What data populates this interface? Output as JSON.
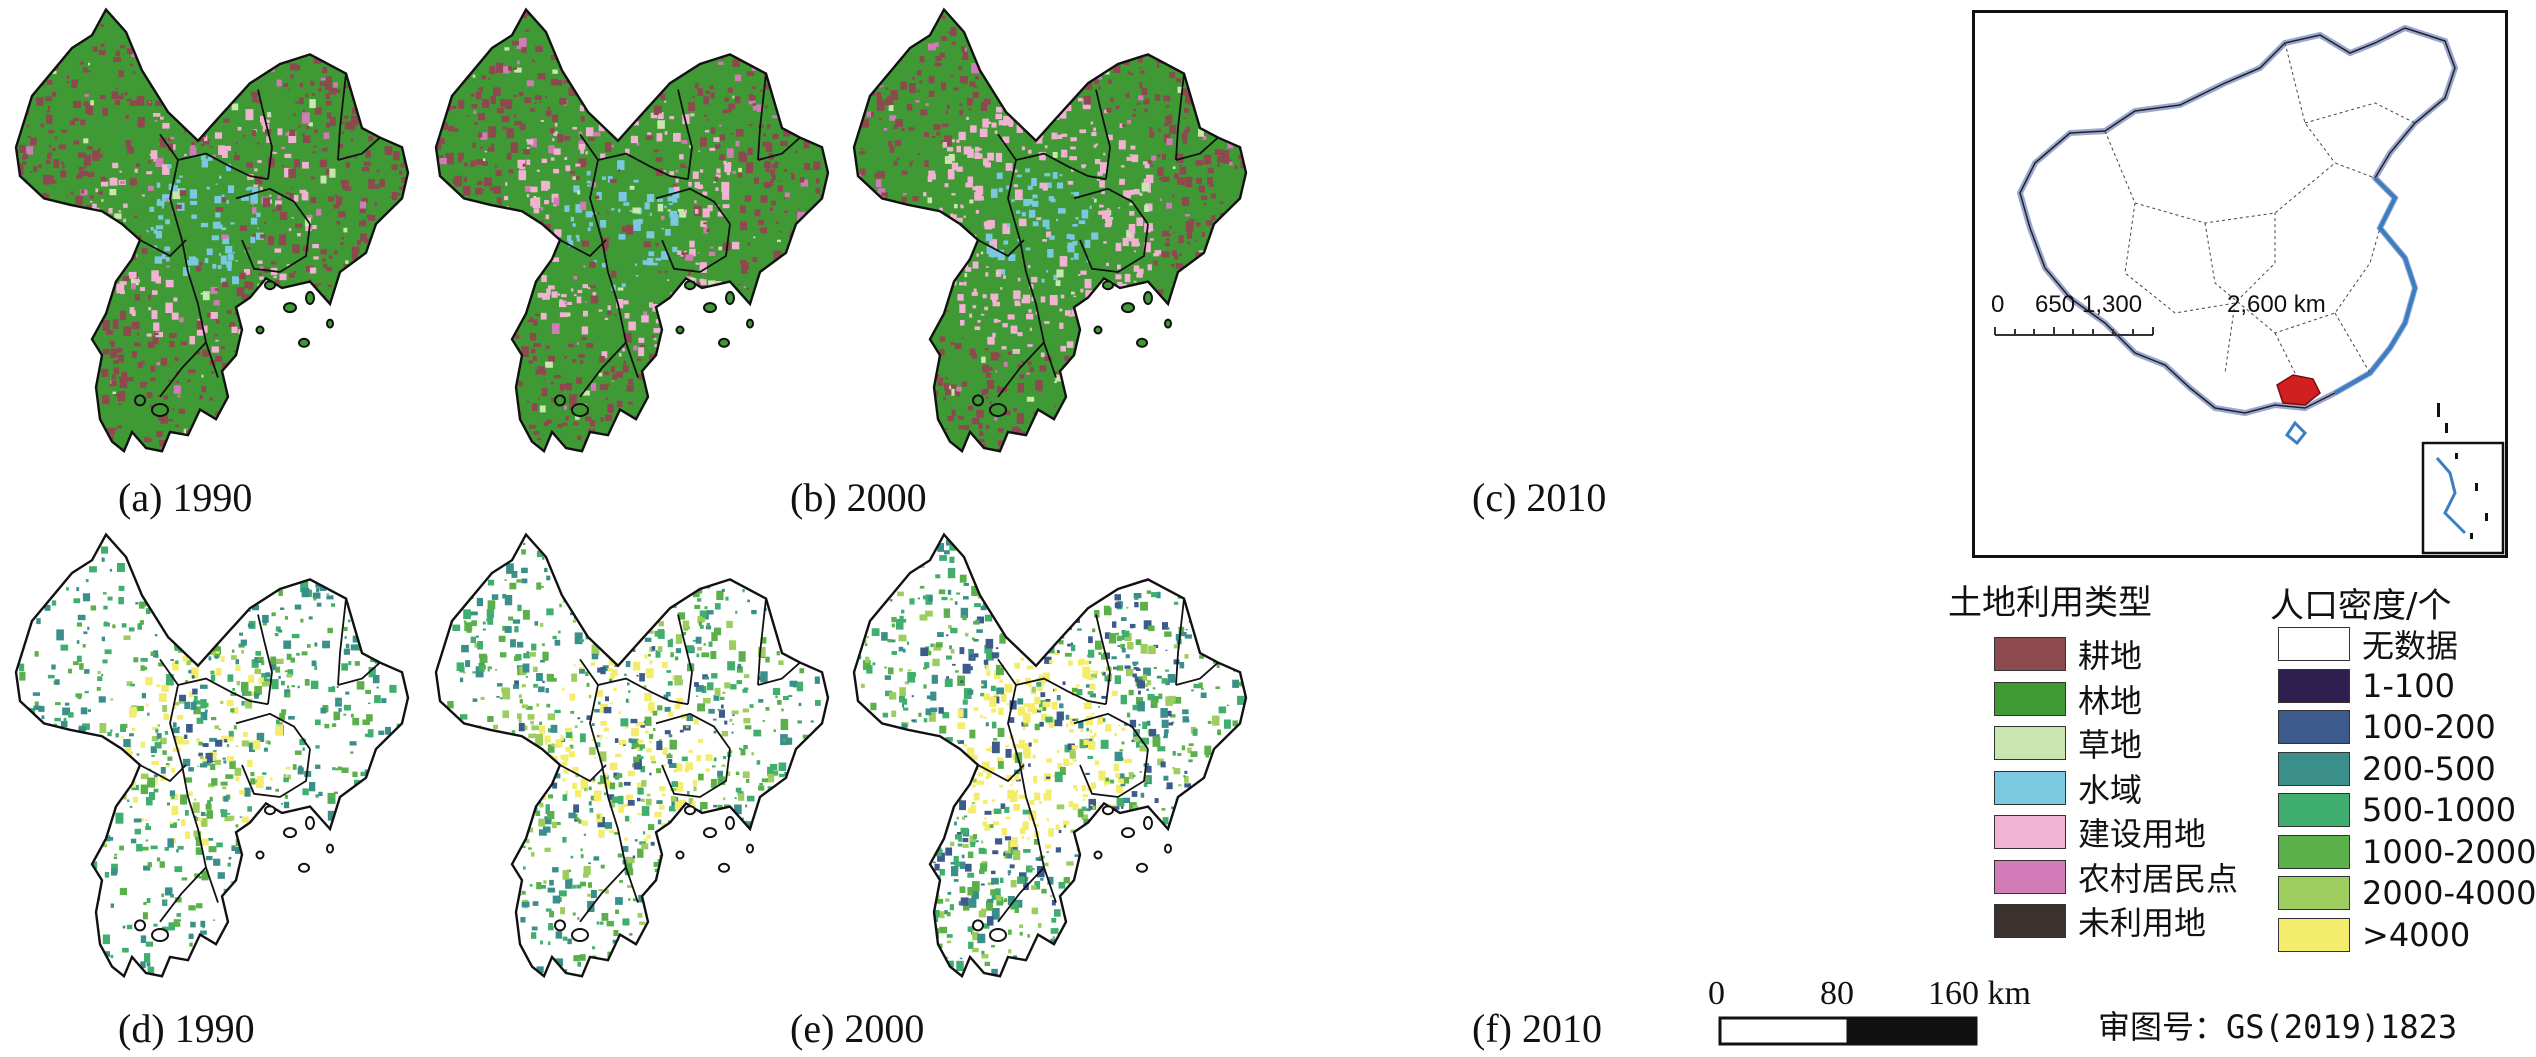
{
  "panels": [
    {
      "caption": "(a) 1990",
      "kind": "landuse",
      "year": 1990
    },
    {
      "caption": "(b) 2000",
      "kind": "landuse",
      "year": 2000
    },
    {
      "caption": "(c) 2010",
      "kind": "landuse",
      "year": 2010
    },
    {
      "caption": "(d) 1990",
      "kind": "population",
      "year": 1990
    },
    {
      "caption": "(e) 2000",
      "kind": "population",
      "year": 2000
    },
    {
      "caption": "(f) 2010",
      "kind": "population",
      "year": 2010
    }
  ],
  "inset": {
    "scale_labels": [
      "0",
      "650",
      "1,300",
      "2,600 km"
    ],
    "highlight_color": "#d21f1f",
    "coast_color": "#3a7fc1"
  },
  "landuse_legend": {
    "title": "土地利用类型",
    "items": [
      {
        "label": "耕地",
        "color": "#8c4a4e"
      },
      {
        "label": "林地",
        "color": "#3f9a35"
      },
      {
        "label": "草地",
        "color": "#c9e5b0"
      },
      {
        "label": "水域",
        "color": "#7ac9e0"
      },
      {
        "label": "建设用地",
        "color": "#f2b2d2"
      },
      {
        "label": "农村居民点",
        "color": "#d37ab8"
      },
      {
        "label": "未利用地",
        "color": "#3b3230"
      }
    ]
  },
  "population_legend": {
    "title": "人口密度/个",
    "items": [
      {
        "label": "无数据",
        "color": "#ffffff"
      },
      {
        "label": "1-100",
        "color": "#2e1f4f"
      },
      {
        "label": "100-200",
        "color": "#3d5a8c"
      },
      {
        "label": "200-500",
        "color": "#3a8f8a"
      },
      {
        "label": "500-1000",
        "color": "#3fae6e"
      },
      {
        "label": "1000-2000",
        "color": "#5bb04a"
      },
      {
        "label": "2000-4000",
        "color": "#9ccd5e"
      },
      {
        "label": ">4000",
        "color": "#f4ec6c"
      }
    ]
  },
  "map_scale": {
    "labels": [
      "0",
      "80",
      "160 km"
    ]
  },
  "approval_number": "审图号：GS(2019)1823"
}
